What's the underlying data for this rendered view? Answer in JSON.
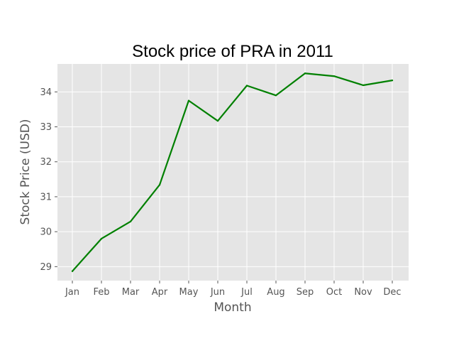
{
  "chart_data": {
    "type": "line",
    "title": "Stock price of PRA in 2011",
    "xlabel": "Month",
    "ylabel": "Stock Price (USD)",
    "categories": [
      "Jan",
      "Feb",
      "Mar",
      "Apr",
      "May",
      "Jun",
      "Jul",
      "Aug",
      "Sep",
      "Oct",
      "Nov",
      "Dec"
    ],
    "series": [
      {
        "values": [
          28.87,
          29.8,
          30.29,
          31.34,
          33.75,
          33.17,
          34.18,
          33.9,
          34.53,
          34.45,
          34.19,
          34.33
        ]
      }
    ],
    "yticks": [
      29,
      30,
      31,
      32,
      33,
      34
    ],
    "ylim": [
      28.6,
      34.8
    ],
    "grid": true,
    "colors": {
      "line": "#008000",
      "plot_bg": "#e5e5e5",
      "grid": "#ffffff"
    }
  }
}
